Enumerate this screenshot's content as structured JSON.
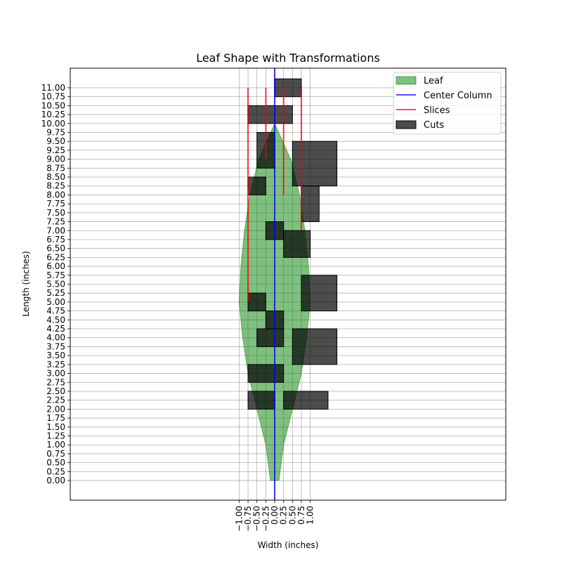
{
  "chart_data": {
    "type": "area",
    "title": "Leaf Shape with Transformations",
    "xlabel": "Width (inches)",
    "ylabel": "Length (inches)",
    "xlim": [
      -5.75,
      6.5
    ],
    "ylim": [
      -0.55,
      11.55
    ],
    "grid": true,
    "legend_position": "top-right",
    "x_ticks": [
      -1.0,
      -0.75,
      -0.5,
      -0.25,
      0.0,
      0.25,
      0.5,
      0.75,
      1.0
    ],
    "x_tick_labels": [
      "−1.00",
      "−0.75",
      "−0.50",
      "−0.25",
      "0.00",
      "0.25",
      "0.50",
      "0.75",
      "1.00"
    ],
    "y_ticks": [
      0,
      0.25,
      0.5,
      0.75,
      1.0,
      1.25,
      1.5,
      1.75,
      2.0,
      2.25,
      2.5,
      2.75,
      3.0,
      3.25,
      3.5,
      3.75,
      4.0,
      4.25,
      4.5,
      4.75,
      5.0,
      5.25,
      5.5,
      5.75,
      6.0,
      6.25,
      6.5,
      6.75,
      7.0,
      7.25,
      7.5,
      7.75,
      8.0,
      8.25,
      8.5,
      8.75,
      9.0,
      9.25,
      9.5,
      9.75,
      10.0,
      10.25,
      10.5,
      10.75,
      11.0
    ],
    "y_tick_labels": [
      "0.00",
      "0.25",
      "0.50",
      "0.75",
      "1.00",
      "1.25",
      "1.50",
      "1.75",
      "2.00",
      "2.25",
      "2.50",
      "2.75",
      "3.00",
      "3.25",
      "3.50",
      "3.75",
      "4.00",
      "4.25",
      "4.50",
      "4.75",
      "5.00",
      "5.25",
      "5.50",
      "5.75",
      "6.00",
      "6.25",
      "6.50",
      "6.75",
      "7.00",
      "7.25",
      "7.50",
      "7.75",
      "8.00",
      "8.25",
      "8.50",
      "8.75",
      "9.00",
      "9.25",
      "9.50",
      "9.75",
      "10.00",
      "10.25",
      "10.50",
      "10.75",
      "11.00"
    ],
    "leaf": {
      "name": "Leaf",
      "color": "#008000",
      "y": [
        0,
        1,
        2,
        3,
        4,
        5,
        6,
        7,
        8,
        9,
        10
      ],
      "half_width": [
        0.12,
        0.25,
        0.5,
        0.75,
        0.9,
        1.0,
        0.95,
        0.85,
        0.7,
        0.45,
        0.0
      ]
    },
    "center_column": {
      "name": "Center Column",
      "color": "#0000ff",
      "x": 0.0
    },
    "slices": {
      "name": "Slices",
      "color": "#ff0000",
      "lines": [
        {
          "x": -0.75,
          "y0": 5.0,
          "y1": 11.0
        },
        {
          "x": -0.25,
          "y0": 9.0,
          "y1": 11.0
        },
        {
          "x": 0.25,
          "y0": 8.0,
          "y1": 11.0
        },
        {
          "x": 0.75,
          "y0": 7.0,
          "y1": 11.0
        }
      ]
    },
    "cuts": {
      "name": "Cuts",
      "color": "#000000",
      "rects": [
        {
          "x0": -0.75,
          "x1": 0.0,
          "y0": 2.0,
          "y1": 2.5
        },
        {
          "x0": 0.25,
          "x1": 1.5,
          "y0": 2.0,
          "y1": 2.5
        },
        {
          "x0": -0.75,
          "x1": 0.25,
          "y0": 2.75,
          "y1": 3.25
        },
        {
          "x0": 0.5,
          "x1": 1.75,
          "y0": 3.25,
          "y1": 4.25
        },
        {
          "x0": -0.5,
          "x1": 0.25,
          "y0": 3.75,
          "y1": 4.25
        },
        {
          "x0": -0.25,
          "x1": 0.25,
          "y0": 4.25,
          "y1": 4.75
        },
        {
          "x0": -0.75,
          "x1": -0.25,
          "y0": 4.75,
          "y1": 5.25
        },
        {
          "x0": 0.75,
          "x1": 1.75,
          "y0": 4.75,
          "y1": 5.75
        },
        {
          "x0": 0.25,
          "x1": 1.0,
          "y0": 6.25,
          "y1": 7.0
        },
        {
          "x0": -0.25,
          "x1": 0.25,
          "y0": 6.75,
          "y1": 7.25
        },
        {
          "x0": 0.75,
          "x1": 1.25,
          "y0": 7.25,
          "y1": 8.25
        },
        {
          "x0": -0.75,
          "x1": -0.25,
          "y0": 8.0,
          "y1": 8.5
        },
        {
          "x0": 0.5,
          "x1": 1.75,
          "y0": 8.25,
          "y1": 9.5
        },
        {
          "x0": -0.5,
          "x1": 0.0,
          "y0": 8.75,
          "y1": 9.75
        },
        {
          "x0": -0.75,
          "x1": 0.5,
          "y0": 10.0,
          "y1": 10.5
        },
        {
          "x0": 0.0,
          "x1": 0.75,
          "y0": 10.75,
          "y1": 11.25
        }
      ]
    },
    "legend": [
      "Leaf",
      "Center Column",
      "Slices",
      "Cuts"
    ]
  }
}
